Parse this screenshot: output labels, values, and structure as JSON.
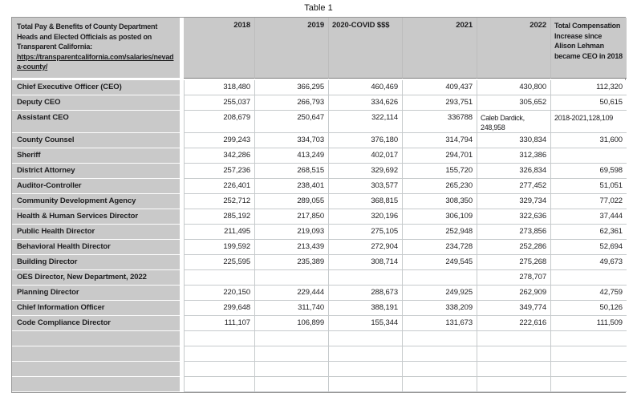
{
  "title": "Table 1",
  "table": {
    "header": {
      "description": "Total Pay & Benefits of County Department Heads and Elected Officials as posted on Transparent California: ",
      "link": "https://transparentcalifornia.com/salaries/nevada-county/",
      "columns": [
        "2018",
        "2019",
        "2020-COVID $$$",
        "2021",
        "2022",
        "Total Compensation Increase since Alison Lehman became CEO in 2018"
      ]
    },
    "column_keys": [
      "2018",
      "2019",
      "2020-covid",
      "2021",
      "2022",
      "total-increase"
    ],
    "rows": [
      {
        "label": "Chief Executive Officer (CEO)",
        "values": [
          "318,480",
          "366,295",
          "460,469",
          "409,437",
          "430,800",
          "112,320"
        ]
      },
      {
        "label": "Deputy CEO",
        "values": [
          "255,037",
          "266,793",
          "334,626",
          "293,751",
          "305,652",
          "50,615"
        ]
      },
      {
        "label": "Assistant CEO",
        "values": [
          "208,679",
          "250,647",
          "322,114",
          "336788",
          {
            "text": "Caleb Dardick, 248,958",
            "align": "left"
          },
          {
            "text": "2018-2021,128,109",
            "align": "left"
          }
        ]
      },
      {
        "label": "County Counsel",
        "values": [
          "299,243",
          "334,703",
          "376,180",
          "314,794",
          "330,834",
          "31,600"
        ]
      },
      {
        "label": "Sheriff",
        "values": [
          "342,286",
          "413,249",
          "402,017",
          "294,701",
          "312,386",
          ""
        ]
      },
      {
        "label": "District Attorney",
        "values": [
          "257,236",
          "268,515",
          "329,692",
          "155,720",
          "326,834",
          "69,598"
        ]
      },
      {
        "label": "Auditor-Controller",
        "values": [
          "226,401",
          "238,401",
          "303,577",
          "265,230",
          "277,452",
          "51,051"
        ]
      },
      {
        "label": "Community Development Agency",
        "values": [
          "252,712",
          "289,055",
          "368,815",
          "308,350",
          "329,734",
          "77,022"
        ]
      },
      {
        "label": "Health & Human Services Director",
        "values": [
          "285,192",
          "217,850",
          "320,196",
          "306,109",
          "322,636",
          "37,444"
        ]
      },
      {
        "label": "Public Health Director",
        "values": [
          "211,495",
          "219,093",
          "275,105",
          "252,948",
          "273,856",
          "62,361"
        ]
      },
      {
        "label": "Behavioral Health Director",
        "values": [
          "199,592",
          "213,439",
          "272,904",
          "234,728",
          "252,286",
          "52,694"
        ]
      },
      {
        "label": "Building Director",
        "values": [
          "225,595",
          "235,389",
          "308,714",
          "249,545",
          "275,268",
          "49,673"
        ]
      },
      {
        "label": "OES Director, New Department, 2022",
        "values": [
          "",
          "",
          "",
          "",
          "278,707",
          ""
        ]
      },
      {
        "label": "Planning Director",
        "values": [
          "220,150",
          "229,444",
          "288,673",
          "249,925",
          "262,909",
          "42,759"
        ]
      },
      {
        "label": "Chief Information Officer",
        "values": [
          "299,648",
          "311,740",
          "388,191",
          "338,209",
          "349,774",
          "50,126"
        ]
      },
      {
        "label": "Code Compliance Director",
        "values": [
          "111,107",
          "106,899",
          "155,344",
          "131,673",
          "222,616",
          "111,509"
        ]
      },
      {
        "label": "",
        "values": [
          "",
          "",
          "",
          "",
          "",
          ""
        ]
      },
      {
        "label": "",
        "values": [
          "",
          "",
          "",
          "",
          "",
          ""
        ]
      },
      {
        "label": "",
        "values": [
          "",
          "",
          "",
          "",
          "",
          ""
        ]
      },
      {
        "label": "",
        "values": [
          "",
          "",
          "",
          "",
          "",
          ""
        ]
      }
    ]
  },
  "colors": {
    "header_fill": "#c9c9c9",
    "label_fill": "#c9c9c9",
    "outer_border": "#979797",
    "cell_border": "#c6cacc",
    "text": "#1d1d1f"
  }
}
